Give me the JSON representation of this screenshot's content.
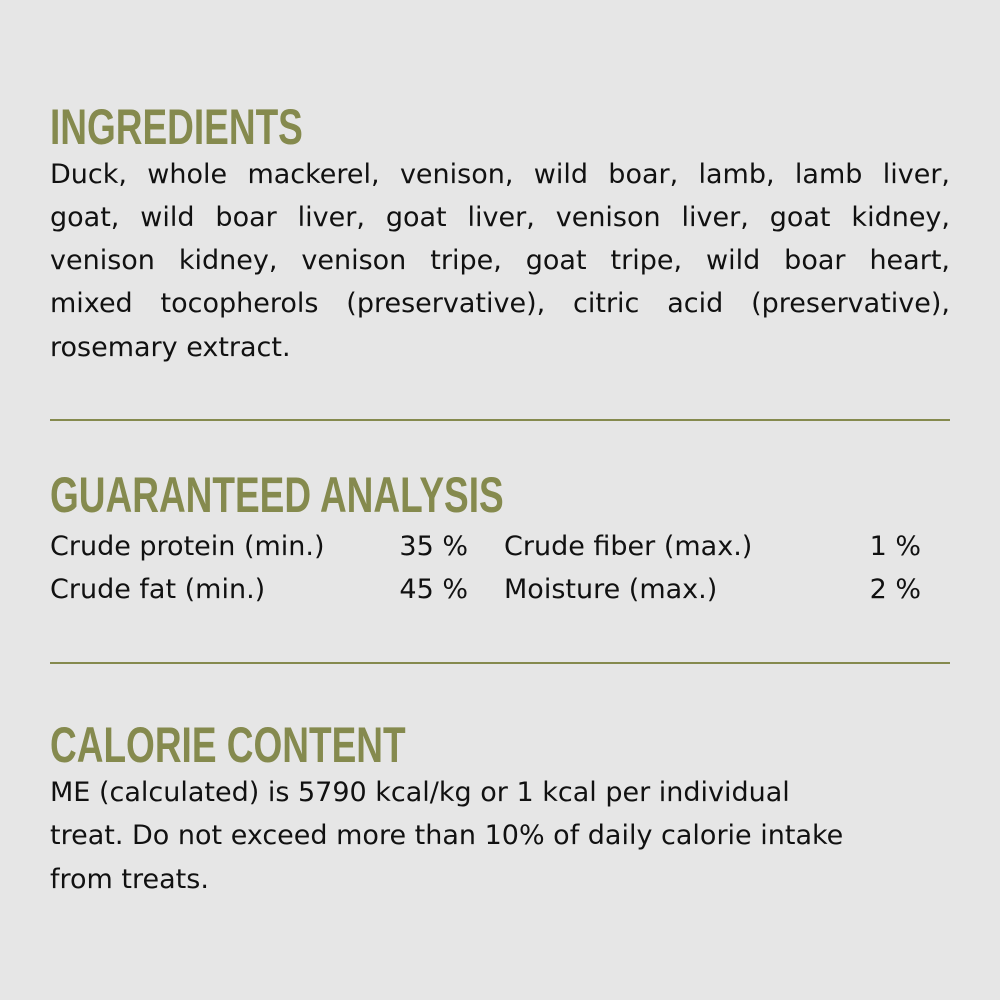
{
  "colors": {
    "accent": "#858a4e",
    "background": "#e6e6e6",
    "text": "#111111"
  },
  "ingredients": {
    "heading": "INGREDIENTS",
    "lines": [
      "Duck, whole mackerel, venison, wild boar, lamb, lamb liver,",
      "goat, wild boar liver, goat liver, venison liver, goat kidney,",
      "venison kidney, venison tripe, goat tripe, wild boar heart,",
      "mixed tocopherols (preservative), citric acid (preservative),",
      "rosemary extract."
    ]
  },
  "analysis": {
    "heading": "GUARANTEED ANALYSIS",
    "rows": [
      {
        "label1": "Crude protein (min.)",
        "value1": "35 %",
        "label2": "Crude fiber (max.)",
        "value2": "1 %"
      },
      {
        "label1": "Crude fat (min.)",
        "value1": "45 %",
        "label2": "Moisture (max.)",
        "value2": "2 %"
      }
    ]
  },
  "calorie": {
    "heading": "CALORIE CONTENT",
    "lines": [
      "ME (calculated) is 5790 kcal/kg or 1 kcal per individual",
      "treat. Do not exceed more than 10% of daily calorie intake",
      "from treats."
    ]
  }
}
